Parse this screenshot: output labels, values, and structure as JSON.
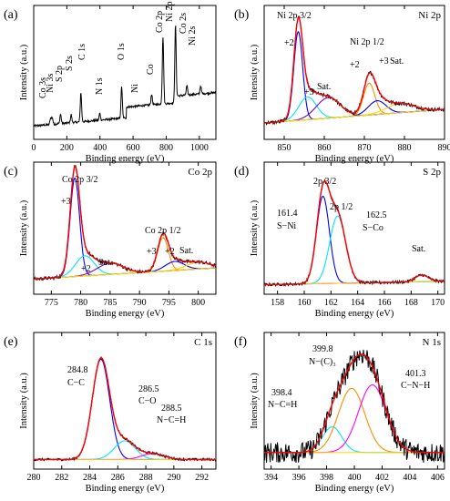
{
  "panels": [
    {
      "id": "a",
      "letter": "(a)",
      "corner": "",
      "xlabel": "Binding energy (eV)",
      "ylabel": "Intensity (a.u.)",
      "xrange": [
        0,
        1100
      ],
      "xticks": [
        0,
        200,
        400,
        600,
        800,
        1000
      ],
      "peak_labels": [
        "Co 3s",
        "Ni 3s",
        "S 2p",
        "S 2s",
        "C 1s",
        "N 1s",
        "O 1s",
        "Ni",
        "Co",
        "Co 2p",
        "Ni 2p",
        "Co 2s",
        "Ni 2s"
      ]
    },
    {
      "id": "b",
      "letter": "(b)",
      "corner": "Ni 2p",
      "xlabel": "Binding energy (eV)",
      "ylabel": "Intensity (a.u.)",
      "xrange": [
        845,
        890
      ],
      "xticks": [
        850,
        860,
        870,
        880,
        890
      ],
      "peak_labels": [
        "Ni 2p 3/2",
        "Ni 2p 1/2",
        "+2",
        "+3",
        "Sat.",
        "+2",
        "+3",
        "Sat."
      ]
    },
    {
      "id": "c",
      "letter": "(c)",
      "corner": "Co 2p",
      "xlabel": "Binding energy (eV)",
      "ylabel": "Intensity (a.u.)",
      "xrange": [
        772,
        803
      ],
      "xticks": [
        775,
        780,
        785,
        790,
        795,
        800
      ],
      "peak_labels": [
        "Co 2p 3/2",
        "Co 2p 1/2",
        "+3",
        "+2",
        "Sat.",
        "+3",
        "+2",
        "Sat."
      ]
    },
    {
      "id": "d",
      "letter": "(d)",
      "corner": "S 2p",
      "xlabel": "Binding energy (eV)",
      "ylabel": "Intensity (a.u.)",
      "xrange": [
        157,
        170.5
      ],
      "xticks": [
        158,
        160,
        162,
        164,
        166,
        168,
        170
      ],
      "peak_labels": [
        "2p 3/2",
        "2p 1/2",
        "161.4",
        "S−Ni",
        "162.5",
        "S−Co",
        "Sat."
      ]
    },
    {
      "id": "e",
      "letter": "(e)",
      "corner": "C 1s",
      "xlabel": "Binding energy (eV)",
      "ylabel": "Intensity (a.u.)",
      "xrange": [
        280,
        293
      ],
      "xticks": [
        280,
        282,
        284,
        286,
        288,
        290,
        292
      ],
      "peak_labels": [
        "284.8",
        "C−C",
        "286.5",
        "C−O",
        "288.5",
        "N−C=H"
      ]
    },
    {
      "id": "f",
      "letter": "(f)",
      "corner": "N 1s",
      "xlabel": "Binding energy (eV)",
      "ylabel": "Intensity (a.u.)",
      "xrange": [
        393.5,
        406.5
      ],
      "xticks": [
        394,
        396,
        398,
        400,
        402,
        404,
        406
      ],
      "peak_labels": [
        "399.8",
        "N−(C)₃",
        "398.4",
        "N−C=H",
        "401.3",
        "C−N−H"
      ]
    }
  ],
  "colors": {
    "raw": "#000000",
    "fit": "#ff0000",
    "blue": "#0000ff",
    "cyan": "#00e5ff",
    "magenta": "#ff00ff",
    "orange": "#ff8c00",
    "yellow": "#ffd700",
    "purple": "#8000c0"
  },
  "chart_data": [
    {
      "type": "line",
      "panel": "a",
      "x_unit": "eV",
      "peaks": [
        {
          "label": "Co 3s",
          "x": 102
        },
        {
          "label": "Ni 3s",
          "x": 112
        },
        {
          "label": "S 2p",
          "x": 162
        },
        {
          "label": "S 2s",
          "x": 226
        },
        {
          "label": "C 1s",
          "x": 285
        },
        {
          "label": "N 1s",
          "x": 399
        },
        {
          "label": "O 1s",
          "x": 531
        },
        {
          "label": "Ni",
          "x": 712
        },
        {
          "label": "Co",
          "x": 778
        },
        {
          "label": "Co 2p",
          "x": 781
        },
        {
          "label": "Ni 2p",
          "x": 856
        },
        {
          "label": "Co 2s",
          "x": 925
        },
        {
          "label": "Ni 2s",
          "x": 1008
        }
      ]
    },
    {
      "type": "line",
      "panel": "b",
      "components": [
        {
          "label": "+2",
          "center": 853.5,
          "color": "blue"
        },
        {
          "label": "+3",
          "center": 855.8,
          "color": "cyan"
        },
        {
          "label": "Sat.",
          "center": 861.0,
          "color": "purple"
        },
        {
          "label": "+2",
          "center": 871.2,
          "color": "orange"
        },
        {
          "label": "+3",
          "center": 873.2,
          "color": "blue"
        },
        {
          "label": "Sat.",
          "center": 879.0,
          "color": "yellow"
        }
      ]
    },
    {
      "type": "line",
      "panel": "c",
      "components": [
        {
          "label": "+3",
          "center": 779.0,
          "color": "blue"
        },
        {
          "label": "+2",
          "center": 780.7,
          "color": "cyan"
        },
        {
          "label": "Sat.",
          "center": 785.0,
          "color": "purple"
        },
        {
          "label": "+3",
          "center": 794.0,
          "color": "orange"
        },
        {
          "label": "+2",
          "center": 796.0,
          "color": "blue"
        },
        {
          "label": "Sat.",
          "center": 800.0,
          "color": "yellow"
        }
      ]
    },
    {
      "type": "line",
      "panel": "d",
      "components": [
        {
          "label": "S−Ni",
          "center": 161.4,
          "color": "blue"
        },
        {
          "label": "S−Co",
          "center": 162.5,
          "color": "cyan"
        },
        {
          "label": "Sat.",
          "center": 168.8,
          "color": "magenta"
        }
      ]
    },
    {
      "type": "line",
      "panel": "e",
      "components": [
        {
          "label": "C−C",
          "center": 284.8,
          "color": "blue"
        },
        {
          "label": "C−O",
          "center": 286.5,
          "color": "cyan"
        },
        {
          "label": "N−C=H",
          "center": 288.5,
          "color": "magenta"
        }
      ]
    },
    {
      "type": "line",
      "panel": "f",
      "components": [
        {
          "label": "N−C=H",
          "center": 398.4,
          "color": "cyan"
        },
        {
          "label": "N−(C)₃",
          "center": 399.8,
          "color": "orange"
        },
        {
          "label": "C−N−H",
          "center": 401.3,
          "color": "magenta"
        }
      ]
    }
  ]
}
